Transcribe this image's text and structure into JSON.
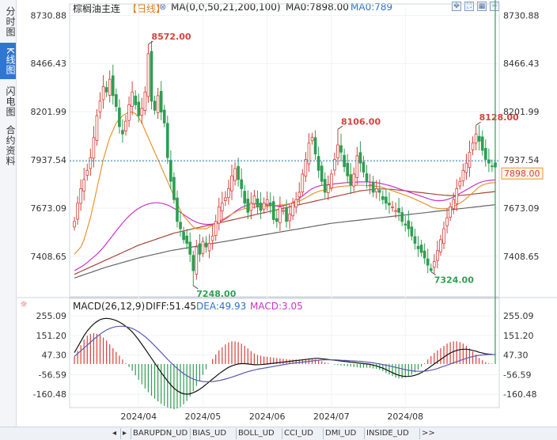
{
  "sidebar": {
    "tabs": [
      "分时图",
      "K线图",
      "闪电图",
      "合约资料"
    ],
    "active": 1
  },
  "header": {
    "instrument": "棕榈油主连",
    "period": "【日线】",
    "ma_params": "MA(0,0,50,21,200,100)",
    "ma0_label": "MA0:7898.00",
    "ma0b_label": "MA0:789"
  },
  "macd": {
    "title": "MACD(26,12,9)",
    "diff": "DIFF:51.45",
    "dea": "DEA:49.93",
    "macd": "MACD:3.05"
  },
  "colors": {
    "up": "#d9403a",
    "down": "#2f9e52",
    "ma_orange": "#e8952e",
    "ma_magenta": "#cc33cc",
    "ma_darkred": "#a8453a",
    "ma_gray": "#666666",
    "last_line": "#2b7fa8",
    "macd_dea": "#cc33cc"
  },
  "chart_data": {
    "type": "candlestick",
    "price_axis": {
      "ticks": [
        "8730.88",
        "8466.43",
        "8201.99",
        "7937.54",
        "7673.09",
        "7408.65"
      ],
      "range": [
        7200,
        8780
      ]
    },
    "macd_axis": {
      "ticks": [
        "255.09",
        "151.20",
        "47.30",
        "-56.59",
        "-160.48"
      ],
      "range": [
        -210,
        285
      ]
    },
    "time_axis": {
      "labels": [
        "2024/04",
        "2024/05",
        "2024/06",
        "2024/07",
        "2024/08"
      ],
      "label_bar_index": [
        20,
        40,
        60,
        80,
        103
      ]
    },
    "last_price": "7898.00",
    "last_price_value": 7898,
    "annotations": [
      {
        "text": "8572.00",
        "bar": 23,
        "value": 8572,
        "kind": "high"
      },
      {
        "text": "7248.00",
        "bar": 37,
        "value": 7248,
        "kind": "low"
      },
      {
        "text": "8106.00",
        "bar": 82,
        "value": 8106,
        "kind": "high"
      },
      {
        "text": "7324.00",
        "bar": 111,
        "value": 7324,
        "kind": "low"
      },
      {
        "text": "8128.00",
        "bar": 125,
        "value": 8128,
        "kind": "high"
      }
    ],
    "closes": [
      7600,
      7700,
      7780,
      7830,
      7880,
      7950,
      8060,
      8180,
      8260,
      8340,
      8310,
      8380,
      8290,
      8230,
      8120,
      8080,
      8150,
      8240,
      8310,
      8240,
      8180,
      8220,
      8310,
      8520,
      8260,
      8210,
      8290,
      8200,
      8140,
      7950,
      7820,
      7720,
      7600,
      7560,
      7500,
      7480,
      7420,
      7330,
      7460,
      7420,
      7490,
      7460,
      7480,
      7520,
      7600,
      7680,
      7700,
      7730,
      7780,
      7850,
      7890,
      7830,
      7780,
      7700,
      7650,
      7700,
      7740,
      7680,
      7660,
      7700,
      7720,
      7690,
      7610,
      7600,
      7680,
      7660,
      7600,
      7640,
      7700,
      7720,
      7760,
      7860,
      7940,
      8030,
      8060,
      7970,
      7880,
      7820,
      7760,
      7800,
      7860,
      7940,
      8020,
      7980,
      7900,
      7850,
      7800,
      7860,
      7960,
      7920,
      7870,
      7820,
      7800,
      7760,
      7780,
      7760,
      7720,
      7700,
      7690,
      7680,
      7660,
      7650,
      7600,
      7580,
      7560,
      7520,
      7480,
      7450,
      7430,
      7400,
      7360,
      7330,
      7380,
      7440,
      7500,
      7560,
      7620,
      7680,
      7720,
      7780,
      7820,
      7880,
      7920,
      7980,
      8030,
      8080,
      8040,
      7990,
      7940,
      7920,
      7900,
      7898
    ],
    "ma_orange": [
      7420,
      7440,
      7460,
      7500,
      7560,
      7620,
      7700,
      7780,
      7860,
      7940,
      8000,
      8060,
      8100,
      8140,
      8160,
      8180,
      8190,
      8200,
      8200,
      8190,
      8170,
      8140,
      8100,
      8060,
      8020,
      7980,
      7940,
      7900,
      7860,
      7820,
      7780,
      7740,
      7700,
      7660,
      7630,
      7610,
      7590,
      7570,
      7560,
      7560,
      7560,
      7560,
      7570,
      7580,
      7590,
      7600,
      7610,
      7620,
      7630,
      7640,
      7650,
      7660,
      7665,
      7670,
      7672,
      7675,
      7678,
      7680,
      7680,
      7682,
      7684,
      7685,
      7686,
      7688,
      7690,
      7692,
      7694,
      7698,
      7702,
      7706,
      7712,
      7720,
      7730,
      7740,
      7750,
      7758,
      7765,
      7770,
      7774,
      7778,
      7782,
      7786,
      7790,
      7792,
      7794,
      7795,
      7796,
      7797,
      7798,
      7798,
      7798,
      7797,
      7796,
      7795,
      7793,
      7790,
      7786,
      7780,
      7774,
      7768,
      7762,
      7756,
      7750,
      7744,
      7738,
      7730,
      7722,
      7714,
      7706,
      7698,
      7690,
      7680,
      7675,
      7672,
      7670,
      7670,
      7672,
      7676,
      7682,
      7690,
      7700,
      7712,
      7726,
      7742,
      7758,
      7774,
      7790,
      7800,
      7806,
      7810,
      7812,
      7813
    ],
    "ma_magenta": [
      7330,
      7340,
      7350,
      7362,
      7375,
      7390,
      7405,
      7420,
      7438,
      7458,
      7480,
      7502,
      7525,
      7548,
      7570,
      7592,
      7612,
      7630,
      7646,
      7660,
      7672,
      7682,
      7690,
      7696,
      7700,
      7702,
      7702,
      7700,
      7696,
      7690,
      7682,
      7672,
      7662,
      7650,
      7638,
      7626,
      7614,
      7604,
      7596,
      7590,
      7586,
      7584,
      7584,
      7586,
      7590,
      7596,
      7604,
      7614,
      7626,
      7640,
      7654,
      7666,
      7676,
      7684,
      7690,
      7694,
      7696,
      7696,
      7694,
      7692,
      7690,
      7688,
      7686,
      7684,
      7684,
      7686,
      7690,
      7696,
      7704,
      7714,
      7726,
      7740,
      7754,
      7768,
      7780,
      7788,
      7794,
      7798,
      7800,
      7802,
      7804,
      7806,
      7808,
      7810,
      7812,
      7813,
      7814,
      7815,
      7816,
      7817,
      7817,
      7817,
      7816,
      7815,
      7813,
      7810,
      7806,
      7802,
      7797,
      7792,
      7786,
      7780,
      7774,
      7768,
      7762,
      7756,
      7750,
      7744,
      7738,
      7732,
      7726,
      7720,
      7716,
      7714,
      7714,
      7716,
      7720,
      7726,
      7734,
      7744,
      7754,
      7764,
      7774,
      7784,
      7794,
      7804,
      7812,
      7818,
      7822,
      7825,
      7827,
      7828
    ],
    "ma_darkred": [
      7310,
      7318,
      7326,
      7334,
      7342,
      7350,
      7358,
      7366,
      7374,
      7382,
      7390,
      7398,
      7406,
      7414,
      7422,
      7430,
      7438,
      7446,
      7454,
      7462,
      7470,
      7476,
      7482,
      7488,
      7494,
      7500,
      7506,
      7512,
      7518,
      7524,
      7530,
      7536,
      7540,
      7544,
      7548,
      7552,
      7556,
      7560,
      7564,
      7568,
      7572,
      7576,
      7580,
      7584,
      7588,
      7592,
      7596,
      7600,
      7604,
      7608,
      7612,
      7616,
      7620,
      7624,
      7628,
      7632,
      7636,
      7640,
      7644,
      7648,
      7652,
      7656,
      7660,
      7664,
      7668,
      7672,
      7676,
      7680,
      7684,
      7688,
      7692,
      7696,
      7700,
      7704,
      7708,
      7712,
      7716,
      7720,
      7724,
      7728,
      7732,
      7736,
      7740,
      7744,
      7748,
      7752,
      7756,
      7760,
      7764,
      7768,
      7770,
      7772,
      7774,
      7776,
      7777,
      7778,
      7778,
      7778,
      7777,
      7776,
      7774,
      7772,
      7770,
      7768,
      7766,
      7764,
      7762,
      7760,
      7758,
      7756,
      7754,
      7752,
      7750,
      7748,
      7746,
      7744,
      7743,
      7742,
      7742,
      7742,
      7743,
      7744,
      7746,
      7748,
      7750,
      7752,
      7754,
      7756,
      7758,
      7760,
      7762,
      7764
    ],
    "ma_gray": [
      7290,
      7296,
      7302,
      7308,
      7314,
      7320,
      7326,
      7332,
      7338,
      7344,
      7350,
      7355,
      7360,
      7365,
      7370,
      7375,
      7380,
      7385,
      7390,
      7395,
      7400,
      7404,
      7408,
      7412,
      7416,
      7420,
      7424,
      7428,
      7432,
      7436,
      7440,
      7443,
      7446,
      7449,
      7452,
      7455,
      7458,
      7461,
      7464,
      7467,
      7470,
      7473,
      7476,
      7479,
      7482,
      7485,
      7488,
      7491,
      7494,
      7497,
      7500,
      7503,
      7506,
      7509,
      7512,
      7515,
      7518,
      7521,
      7524,
      7527,
      7530,
      7533,
      7536,
      7539,
      7542,
      7545,
      7548,
      7551,
      7554,
      7557,
      7560,
      7563,
      7566,
      7569,
      7572,
      7575,
      7578,
      7581,
      7584,
      7587,
      7590,
      7592,
      7594,
      7596,
      7598,
      7600,
      7602,
      7604,
      7606,
      7608,
      7610,
      7612,
      7614,
      7616,
      7618,
      7620,
      7622,
      7624,
      7626,
      7628,
      7630,
      7632,
      7634,
      7636,
      7638,
      7640,
      7642,
      7644,
      7646,
      7648,
      7650,
      7652,
      7654,
      7656,
      7658,
      7660,
      7662,
      7664,
      7666,
      7668,
      7670,
      7672,
      7674,
      7676,
      7678,
      7680,
      7682,
      7684,
      7686,
      7688,
      7690,
      7692
    ],
    "diff": [
      60,
      90,
      120,
      150,
      175,
      195,
      212,
      225,
      235,
      240,
      242,
      240,
      236,
      230,
      222,
      212,
      200,
      186,
      170,
      150,
      128,
      104,
      80,
      55,
      30,
      5,
      -20,
      -45,
      -68,
      -90,
      -110,
      -128,
      -142,
      -152,
      -158,
      -160,
      -158,
      -152,
      -144,
      -134,
      -122,
      -108,
      -94,
      -80,
      -66,
      -52,
      -40,
      -28,
      -18,
      -10,
      -4,
      0,
      2,
      2,
      0,
      -2,
      -4,
      -4,
      -3,
      -2,
      0,
      2,
      4,
      6,
      8,
      10,
      12,
      14,
      16,
      18,
      20,
      22,
      24,
      26,
      28,
      30,
      30,
      28,
      26,
      24,
      22,
      20,
      18,
      16,
      14,
      12,
      10,
      8,
      6,
      4,
      2,
      0,
      -2,
      -6,
      -10,
      -16,
      -22,
      -30,
      -38,
      -46,
      -54,
      -60,
      -64,
      -66,
      -66,
      -64,
      -60,
      -54,
      -46,
      -36,
      -24,
      -12,
      0,
      12,
      24,
      36,
      48,
      58,
      66,
      72,
      76,
      78,
      78,
      76,
      72,
      68,
      62,
      58,
      54,
      52,
      51.45
    ],
    "dea": [
      40,
      55,
      70,
      85,
      100,
      115,
      130,
      145,
      158,
      170,
      180,
      188,
      194,
      198,
      200,
      200,
      198,
      194,
      188,
      180,
      170,
      158,
      145,
      130,
      114,
      97,
      79,
      61,
      43,
      25,
      8,
      -8,
      -24,
      -38,
      -51,
      -62,
      -72,
      -80,
      -86,
      -90,
      -93,
      -94,
      -94,
      -93,
      -91,
      -88,
      -84,
      -80,
      -75,
      -70,
      -64,
      -58,
      -52,
      -46,
      -41,
      -36,
      -32,
      -28,
      -25,
      -22,
      -19,
      -16,
      -13,
      -10,
      -7,
      -4,
      -1,
      2,
      4,
      6,
      8,
      10,
      12,
      14,
      16,
      18,
      20,
      21,
      22,
      22,
      22,
      22,
      21,
      20,
      19,
      18,
      17,
      16,
      15,
      14,
      12,
      10,
      8,
      6,
      3,
      0,
      -3,
      -6,
      -10,
      -14,
      -18,
      -22,
      -26,
      -30,
      -33,
      -36,
      -38,
      -39,
      -39,
      -38,
      -36,
      -33,
      -29,
      -24,
      -18,
      -12,
      -6,
      0,
      6,
      12,
      18,
      24,
      30,
      35,
      39,
      43,
      46,
      48,
      49,
      50,
      50,
      49.93
    ]
  }
}
